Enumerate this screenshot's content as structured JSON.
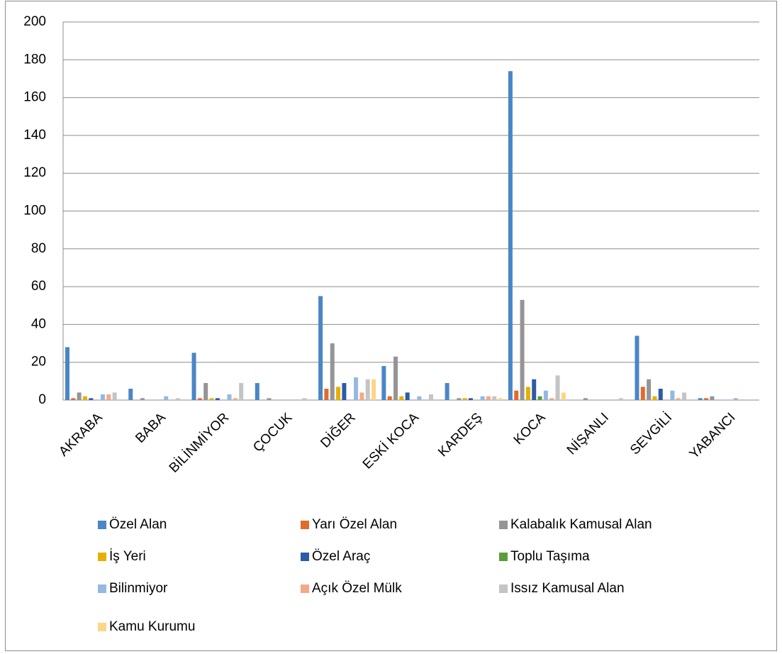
{
  "chart_data": {
    "type": "bar",
    "categories": [
      "AKRABA",
      "BABA",
      "BİLİNMİYOR",
      "ÇOCUK",
      "DİĞER",
      "ESKİ KOCA",
      "KARDEŞ",
      "KOCA",
      "NİŞANLI",
      "SEVGİLİ",
      "YABANCI"
    ],
    "series": [
      {
        "name": "Özel Alan",
        "color": "#4a86c5",
        "values": [
          28,
          6,
          25,
          9,
          55,
          18,
          9,
          174,
          0,
          34,
          1
        ]
      },
      {
        "name": "Yarı Özel Alan",
        "color": "#e06c2c",
        "values": [
          1,
          0,
          1,
          0,
          6,
          2,
          0,
          5,
          0,
          7,
          1
        ]
      },
      {
        "name": "Kalabalık Kamusal Alan",
        "color": "#959595",
        "values": [
          4,
          1,
          9,
          1,
          30,
          23,
          1,
          53,
          1,
          11,
          2
        ]
      },
      {
        "name": "İş Yeri",
        "color": "#e6b000",
        "values": [
          2,
          0,
          1,
          0,
          7,
          2,
          1,
          7,
          0,
          2,
          0
        ]
      },
      {
        "name": "Özel Araç",
        "color": "#2e5ba8",
        "values": [
          1,
          0,
          1,
          0,
          9,
          4,
          1,
          11,
          0,
          6,
          0
        ]
      },
      {
        "name": "Toplu Taşıma",
        "color": "#5a9e3a",
        "values": [
          0,
          0,
          0,
          0,
          0,
          0,
          0,
          2,
          0,
          0,
          0
        ]
      },
      {
        "name": "Bilinmiyor",
        "color": "#95b8e2",
        "values": [
          3,
          2,
          3,
          0,
          12,
          2,
          2,
          5,
          0,
          5,
          1
        ]
      },
      {
        "name": "Açık Özel Mülk",
        "color": "#f2a988",
        "values": [
          3,
          0,
          1,
          0,
          4,
          0,
          2,
          1,
          0,
          1,
          0
        ]
      },
      {
        "name": "Issız Kamusal Alan",
        "color": "#c4c4c4",
        "values": [
          4,
          1,
          9,
          1,
          11,
          3,
          2,
          13,
          1,
          4,
          0
        ]
      },
      {
        "name": "Kamu Kurumu",
        "color": "#fdd588",
        "values": [
          0,
          0,
          0,
          0,
          11,
          0,
          1,
          4,
          0,
          0,
          0
        ]
      }
    ],
    "ylim": [
      0,
      200
    ],
    "yticks": [
      0,
      20,
      40,
      60,
      80,
      100,
      120,
      140,
      160,
      180,
      200
    ],
    "grid": true,
    "legend": "bottom"
  }
}
